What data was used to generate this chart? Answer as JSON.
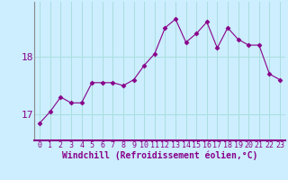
{
  "x": [
    0,
    1,
    2,
    3,
    4,
    5,
    6,
    7,
    8,
    9,
    10,
    11,
    12,
    13,
    14,
    15,
    16,
    17,
    18,
    19,
    20,
    21,
    22,
    23
  ],
  "y": [
    16.85,
    17.05,
    17.3,
    17.2,
    17.2,
    17.55,
    17.55,
    17.55,
    17.5,
    17.6,
    17.85,
    18.05,
    18.5,
    18.65,
    18.25,
    18.4,
    18.6,
    18.15,
    18.5,
    18.3,
    18.2,
    18.2,
    17.7,
    17.6
  ],
  "line_color": "#880088",
  "marker": "D",
  "marker_size": 2.5,
  "background_color": "#cceeff",
  "grid_color": "#aadddd",
  "yticks": [
    17,
    18
  ],
  "xticks": [
    0,
    1,
    2,
    3,
    4,
    5,
    6,
    7,
    8,
    9,
    10,
    11,
    12,
    13,
    14,
    15,
    16,
    17,
    18,
    19,
    20,
    21,
    22,
    23
  ],
  "xlabel": "Windchill (Refroidissement éolien,°C)",
  "ylim": [
    16.55,
    18.95
  ],
  "xlim": [
    -0.5,
    23.5
  ],
  "xlabel_color": "#880088",
  "xlabel_fontsize": 7,
  "tick_color": "#880088",
  "tick_fontsize": 6,
  "ytick_fontsize": 8
}
